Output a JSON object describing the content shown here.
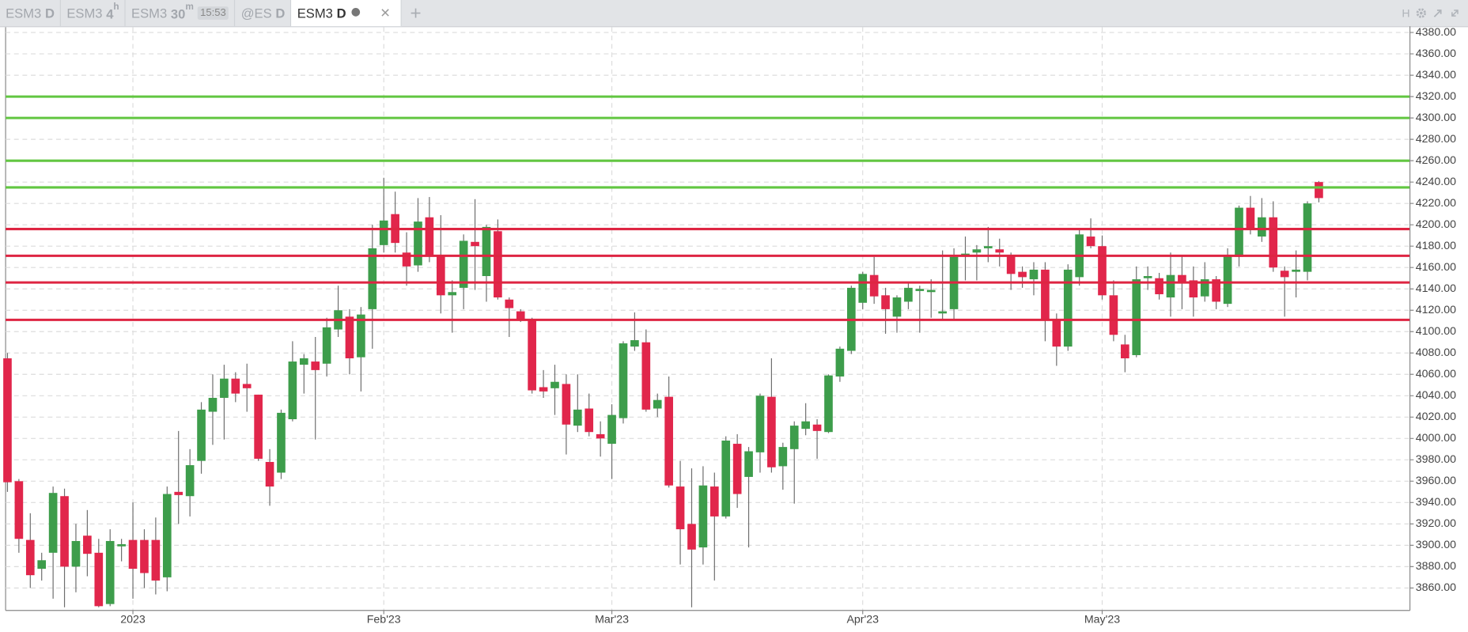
{
  "tabs": [
    {
      "symbol": "ESM3",
      "period": "D"
    },
    {
      "symbol": "ESM3",
      "period": "4",
      "unit": "h"
    },
    {
      "symbol": "ESM3",
      "period": "30",
      "unit": "m",
      "badge": "15:53"
    },
    {
      "symbol": "@ES",
      "period": "D"
    },
    {
      "symbol": "ESM3",
      "period": "D",
      "active": true
    }
  ],
  "toolbar": {
    "label": "H"
  },
  "chart_data": {
    "type": "candlestick",
    "categories": [
      null,
      null,
      null,
      null,
      null,
      null,
      null,
      null,
      null,
      null,
      null,
      "2023",
      null,
      null,
      null,
      null,
      null,
      null,
      null,
      null,
      null,
      null,
      null,
      null,
      null,
      null,
      null,
      null,
      null,
      null,
      null,
      null,
      null,
      "Feb'23",
      null,
      null,
      null,
      null,
      null,
      null,
      null,
      null,
      null,
      null,
      null,
      null,
      null,
      null,
      null,
      null,
      null,
      null,
      null,
      "Mar'23",
      null,
      null,
      null,
      null,
      null,
      null,
      null,
      null,
      null,
      null,
      null,
      null,
      null,
      null,
      null,
      null,
      null,
      null,
      null,
      null,
      null,
      "Apr'23",
      null,
      null,
      null,
      null,
      null,
      null,
      null,
      null,
      null,
      null,
      null,
      null,
      null,
      null,
      null,
      null,
      null,
      null,
      null,
      null,
      "May'23",
      null,
      null,
      null,
      null,
      null,
      null,
      null,
      null,
      null,
      null,
      null,
      null,
      null,
      null,
      null,
      null,
      null,
      null,
      null
    ],
    "open": [
      4075,
      3960,
      3905,
      3878,
      3893,
      3946,
      3880,
      3909,
      3893,
      3845,
      3899,
      3905,
      3905,
      3905,
      3870,
      3950,
      3946,
      3979,
      4025,
      4038,
      4056,
      4051,
      4041,
      3978,
      3968,
      4018,
      4069,
      4072,
      4070,
      4102,
      4114,
      4076,
      4121,
      4181,
      4210,
      4174,
      4162,
      4207,
      4171,
      4134,
      4141,
      4184,
      4152,
      4194,
      4130,
      4119,
      4112,
      4048,
      4047,
      4051,
      4012,
      4028,
      4004,
      3995,
      4019,
      4086,
      4090,
      4028,
      4039,
      3955,
      3920,
      3898,
      3955,
      3927,
      3995,
      3964,
      3987,
      4039,
      3974,
      3990,
      4009,
      4013,
      4006,
      4058,
      4082,
      4127,
      4153,
      4134,
      4114,
      4128,
      4138,
      4137,
      4117,
      4121,
      4171,
      4174,
      4178,
      4177,
      4172,
      4156,
      4149,
      4158,
      4111,
      4086,
      4151,
      4189,
      4180,
      4134,
      4088,
      4078,
      4150,
      4150,
      4132,
      4153,
      4148,
      4133,
      4149,
      4126,
      4170,
      4216,
      4189,
      4207,
      4157,
      4156,
      4156,
      4240
    ],
    "high": [
      4080,
      3962,
      3930,
      3893,
      3955,
      3953,
      3920,
      3933,
      3906,
      3915,
      3906,
      3940,
      3915,
      3926,
      3955,
      4007,
      3990,
      4034,
      4060,
      4069,
      4062,
      4070,
      4041,
      3990,
      4027,
      4091,
      4079,
      4095,
      4113,
      4143,
      4121,
      4123,
      4200,
      4244,
      4231,
      4193,
      4225,
      4226,
      4209,
      4148,
      4191,
      4224,
      4200,
      4205,
      4132,
      4121,
      4113,
      4064,
      4069,
      4060,
      4060,
      4042,
      4016,
      4032,
      4091,
      4118,
      4102,
      4042,
      4058,
      3979,
      3972,
      3974,
      3968,
      4002,
      4004,
      3992,
      4042,
      4075,
      3996,
      4016,
      4033,
      4018,
      4060,
      4086,
      4143,
      4156,
      4170,
      4141,
      4134,
      4146,
      4143,
      4149,
      4176,
      4178,
      4189,
      4181,
      4198,
      4187,
      4174,
      4161,
      4165,
      4165,
      4117,
      4163,
      4196,
      4206,
      4190,
      4148,
      4097,
      4161,
      4161,
      4155,
      4174,
      4171,
      4161,
      4165,
      4152,
      4178,
      4218,
      4227,
      4225,
      4222,
      4161,
      4176,
      4222,
      4241
    ],
    "low": [
      3950,
      3893,
      3860,
      3867,
      3850,
      3842,
      3856,
      3871,
      3842,
      3843,
      3885,
      3850,
      3860,
      3854,
      3857,
      3920,
      3927,
      3967,
      3994,
      3999,
      4034,
      4025,
      3979,
      3937,
      3962,
      4016,
      4042,
      3999,
      4058,
      4095,
      4060,
      4044,
      4084,
      4174,
      4174,
      4143,
      4156,
      4165,
      4117,
      4099,
      4121,
      4139,
      4128,
      4130,
      4095,
      4109,
      4042,
      4038,
      4022,
      3985,
      4006,
      4002,
      3983,
      3962,
      4014,
      4082,
      4025,
      4020,
      3954,
      3882,
      3842,
      3882,
      3867,
      3925,
      3935,
      3898,
      3968,
      3968,
      3952,
      3939,
      4003,
      3981,
      4005,
      4053,
      4079,
      4121,
      4126,
      4098,
      4099,
      4121,
      4099,
      4113,
      4112,
      4112,
      4148,
      4148,
      4165,
      4161,
      4139,
      4141,
      4134,
      4091,
      4068,
      4082,
      4143,
      4178,
      4130,
      4091,
      4062,
      4076,
      4139,
      4130,
      4114,
      4121,
      4114,
      4128,
      4121,
      4123,
      4161,
      4191,
      4184,
      4156,
      4114,
      4132,
      4148,
      4221
    ],
    "close": [
      3959,
      3906,
      3872,
      3886,
      3949,
      3880,
      3904,
      3892,
      3843,
      3904,
      3901,
      3878,
      3874,
      3867,
      3948,
      3947,
      3975,
      4027,
      4038,
      4056,
      4042,
      4047,
      3981,
      3955,
      4024,
      4072,
      4075,
      4064,
      4104,
      4120,
      4075,
      4116,
      4178,
      4204,
      4183,
      4161,
      4203,
      4171,
      4134,
      4137,
      4185,
      4180,
      4198,
      4132,
      4122,
      4111,
      4045,
      4044,
      4053,
      4013,
      4027,
      4006,
      4000,
      4022,
      4089,
      4092,
      4027,
      4036,
      3956,
      3915,
      3896,
      3956,
      3927,
      3998,
      3948,
      3988,
      4040,
      3973,
      3992,
      4012,
      4016,
      4007,
      4059,
      4084,
      4141,
      4154,
      4133,
      4121,
      4132,
      4141,
      4140,
      4139,
      4119,
      4170,
      4173,
      4177,
      4180,
      4174,
      4154,
      4151,
      4158,
      4111,
      4086,
      4158,
      4191,
      4180,
      4134,
      4097,
      4075,
      4149,
      4152,
      4135,
      4153,
      4145,
      4132,
      4149,
      4128,
      4171,
      4216,
      4196,
      4207,
      4160,
      4151,
      4158,
      4220,
      4225
    ],
    "up_color": "#3d9d4b",
    "down_color": "#e1264b",
    "levels": [
      {
        "value": 4320,
        "color": "#62c641"
      },
      {
        "value": 4300,
        "color": "#62c641"
      },
      {
        "value": 4260,
        "color": "#62c641"
      },
      {
        "value": 4235,
        "color": "#62c641"
      },
      {
        "value": 4196,
        "color": "#de2542"
      },
      {
        "value": 4171,
        "color": "#de2542"
      },
      {
        "value": 4146,
        "color": "#de2542"
      },
      {
        "value": 4111,
        "color": "#de2542"
      }
    ],
    "ylim": [
      3839,
      4385
    ],
    "yticks": [
      {
        "value": 3860,
        "label": "3860.00"
      },
      {
        "value": 3880,
        "label": "3880.00"
      },
      {
        "value": 3900,
        "label": "3900.00"
      },
      {
        "value": 3920,
        "label": "3920.00"
      },
      {
        "value": 3940,
        "label": "3940.00"
      },
      {
        "value": 3960,
        "label": "3960.00"
      },
      {
        "value": 3980,
        "label": "3980.00"
      },
      {
        "value": 4000,
        "label": "4000.00"
      },
      {
        "value": 4020,
        "label": "4020.00"
      },
      {
        "value": 4040,
        "label": "4040.00"
      },
      {
        "value": 4060,
        "label": "4060.00"
      },
      {
        "value": 4080,
        "label": "4080.00"
      },
      {
        "value": 4100,
        "label": "4100.00"
      },
      {
        "value": 4120,
        "label": "4120.00"
      },
      {
        "value": 4140,
        "label": "4140.00"
      },
      {
        "value": 4160,
        "label": "4160.00"
      },
      {
        "value": 4180,
        "label": "4180.00"
      },
      {
        "value": 4200,
        "label": "4200.00"
      },
      {
        "value": 4220,
        "label": "4220.00"
      },
      {
        "value": 4240,
        "label": "4240.00"
      },
      {
        "value": 4260,
        "label": "4260.00"
      },
      {
        "value": 4280,
        "label": "4280.00"
      },
      {
        "value": 4300,
        "label": "4300.00"
      },
      {
        "value": 4320,
        "label": "4320.00"
      },
      {
        "value": 4340,
        "label": "4340.00"
      },
      {
        "value": 4360,
        "label": "4360.00"
      },
      {
        "value": 4380,
        "label": "4380.00"
      }
    ],
    "grid": true
  }
}
